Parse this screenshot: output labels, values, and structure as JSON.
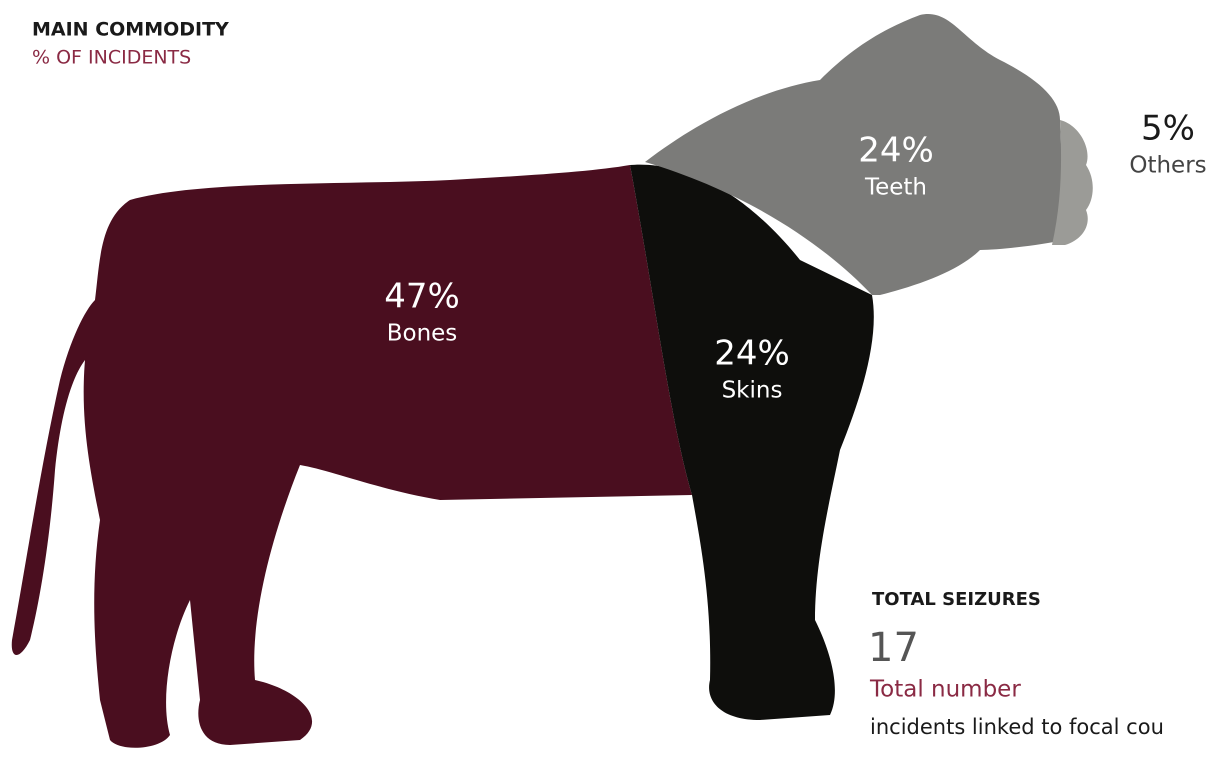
{
  "chart_data": {
    "type": "pictogram",
    "title": "MAIN COMMODITY",
    "subtitle": "% OF INCIDENTS",
    "categories": [
      "Bones",
      "Skins",
      "Teeth",
      "Others"
    ],
    "values": [
      47,
      24,
      24,
      5
    ],
    "value_labels": [
      "47%",
      "24%",
      "24%",
      "5%"
    ],
    "colors": [
      "#4a0e1f",
      "#0e0e0c",
      "#7b7b79",
      "#9b9b97"
    ]
  },
  "summary": {
    "heading": "TOTAL SEIZURES",
    "value": 17,
    "label": "Total number",
    "note": "incidents linked to focal cou"
  }
}
